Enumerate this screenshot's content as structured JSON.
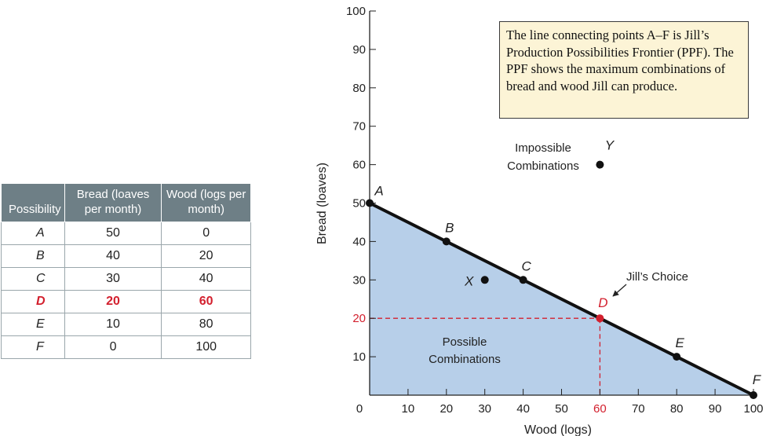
{
  "table": {
    "headers": [
      "Possibility",
      "Bread (loaves per month)",
      "Wood (logs per month)"
    ],
    "rows": [
      {
        "possibility": "A",
        "bread": "50",
        "wood": "0"
      },
      {
        "possibility": "B",
        "bread": "40",
        "wood": "20"
      },
      {
        "possibility": "C",
        "bread": "30",
        "wood": "40"
      },
      {
        "possibility": "D",
        "bread": "20",
        "wood": "60",
        "highlight": true
      },
      {
        "possibility": "E",
        "bread": "10",
        "wood": "80"
      },
      {
        "possibility": "F",
        "bread": "0",
        "wood": "100"
      }
    ]
  },
  "callout": {
    "text": "The line connecting points A–F is Jill’s Production Possibilities Frontier (PPF). The PPF shows the maximum combinations of bread and wood Jill can produce."
  },
  "chart_data": {
    "type": "line",
    "xlabel": "Wood (logs)",
    "ylabel": "Bread (loaves)",
    "xlim": [
      0,
      100
    ],
    "ylim": [
      0,
      100
    ],
    "xticks": [
      0,
      10,
      20,
      30,
      40,
      50,
      60,
      70,
      80,
      90,
      100
    ],
    "yticks": [
      10,
      20,
      30,
      40,
      50,
      60,
      70,
      80,
      90,
      100
    ],
    "highlight_ticks": {
      "x": 60,
      "y": 20
    },
    "grid": false,
    "ppf_points": [
      {
        "label": "A",
        "x": 0,
        "y": 50
      },
      {
        "label": "B",
        "x": 20,
        "y": 40
      },
      {
        "label": "C",
        "x": 40,
        "y": 30
      },
      {
        "label": "D",
        "x": 60,
        "y": 20,
        "highlight": true
      },
      {
        "label": "E",
        "x": 80,
        "y": 10
      },
      {
        "label": "F",
        "x": 100,
        "y": 0
      }
    ],
    "other_points": [
      {
        "label": "X",
        "x": 30,
        "y": 30
      },
      {
        "label": "Y",
        "x": 60,
        "y": 60
      }
    ],
    "annotations": {
      "possible": "Possible Combinations",
      "impossible": "Impossible Combinations",
      "choice": "Jill’s Choice"
    },
    "colors": {
      "fill": "#b7cfe9",
      "line": "#111111",
      "highlight": "#d3202e"
    }
  }
}
